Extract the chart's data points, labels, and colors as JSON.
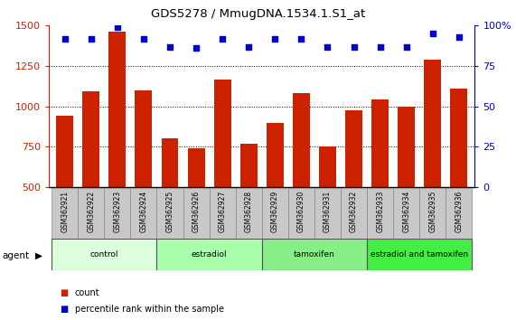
{
  "title": "GDS5278 / MmugDNA.1534.1.S1_at",
  "samples": [
    "GSM362921",
    "GSM362922",
    "GSM362923",
    "GSM362924",
    "GSM362925",
    "GSM362926",
    "GSM362927",
    "GSM362928",
    "GSM362929",
    "GSM362930",
    "GSM362931",
    "GSM362932",
    "GSM362933",
    "GSM362934",
    "GSM362935",
    "GSM362936"
  ],
  "counts": [
    940,
    1095,
    1460,
    1100,
    800,
    740,
    1165,
    770,
    900,
    1080,
    755,
    975,
    1045,
    1000,
    1290,
    1110
  ],
  "percentiles": [
    92,
    92,
    99,
    92,
    87,
    86,
    92,
    87,
    92,
    92,
    87,
    87,
    87,
    87,
    95,
    93
  ],
  "groups": [
    {
      "label": "control",
      "start": 0,
      "end": 4,
      "color": "#ddfedd"
    },
    {
      "label": "estradiol",
      "start": 4,
      "end": 8,
      "color": "#aaffaa"
    },
    {
      "label": "tamoxifen",
      "start": 8,
      "end": 12,
      "color": "#88ee88"
    },
    {
      "label": "estradiol and tamoxifen",
      "start": 12,
      "end": 16,
      "color": "#44ee44"
    }
  ],
  "bar_color": "#cc2200",
  "dot_color": "#0000cc",
  "left_ylim": [
    500,
    1500
  ],
  "left_yticks": [
    500,
    750,
    1000,
    1250,
    1500
  ],
  "right_ylim": [
    0,
    100
  ],
  "right_yticks": [
    0,
    25,
    50,
    75,
    100
  ],
  "right_yticklabels": [
    "0",
    "25",
    "50",
    "75",
    "100%"
  ],
  "grid_values": [
    750,
    1000,
    1250
  ],
  "left_tick_color": "#cc2200",
  "right_tick_color": "#0000cc",
  "agent_label": "agent",
  "legend_count_label": "count",
  "legend_pct_label": "percentile rank within the sample",
  "bg_color": "#ffffff",
  "tick_area_color": "#c8c8c8"
}
